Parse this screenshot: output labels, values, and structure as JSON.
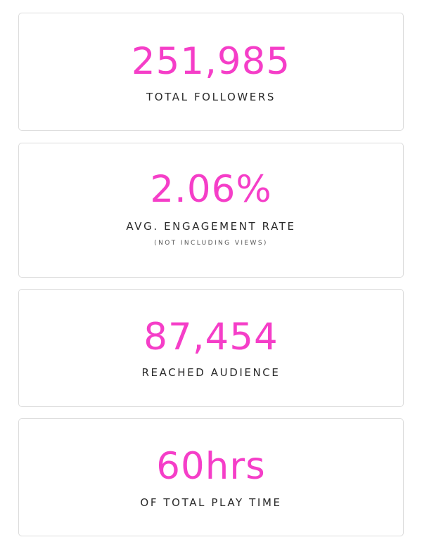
{
  "colors": {
    "accent": "#f53ec8",
    "label_text": "#2a2a2a",
    "card_border": "#dcdcdc",
    "background": "#ffffff"
  },
  "stats": [
    {
      "value": "251,985",
      "label": "TOTAL FOLLOWERS"
    },
    {
      "value": "2.06%",
      "label": "AVG. ENGAGEMENT RATE",
      "note": "(NOT INCLUDING VIEWS)"
    },
    {
      "value": "87,454",
      "label": "REACHED AUDIENCE"
    },
    {
      "value": "60hrs",
      "label": "OF TOTAL PLAY TIME"
    }
  ]
}
